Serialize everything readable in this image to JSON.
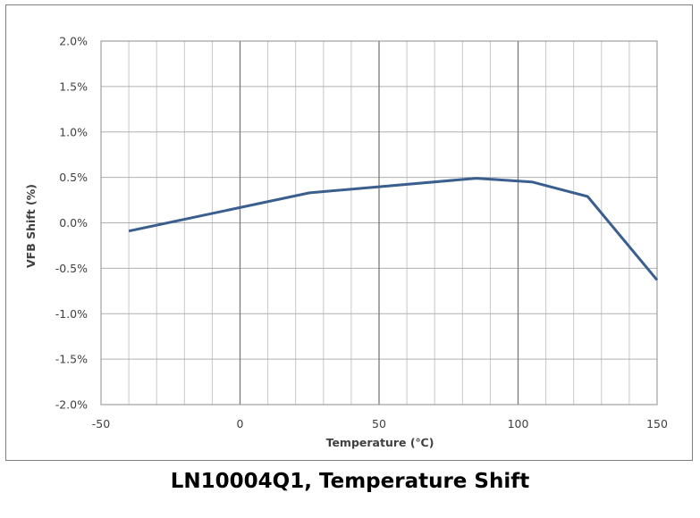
{
  "caption": "LN10004Q1, Temperature Shift",
  "chart_data": {
    "type": "line",
    "title": "",
    "xlabel": "Temperature (℃)",
    "ylabel": "VFB Shift (%)",
    "xlim": [
      -50,
      150
    ],
    "ylim": [
      -2.0,
      2.0
    ],
    "x_ticks": [
      -50,
      0,
      50,
      100,
      150
    ],
    "x_tick_labels": [
      "-50",
      "0",
      "50",
      "100",
      "150"
    ],
    "x_minor_step": 10,
    "y_ticks": [
      2.0,
      1.5,
      1.0,
      0.5,
      0.0,
      -0.5,
      -1.0,
      -1.5,
      -2.0
    ],
    "y_tick_labels": [
      "2.0%",
      "1.5%",
      "1.0%",
      "0.5%",
      "0.0%",
      "-0.5%",
      "-1.0%",
      "-1.5%",
      "-2.0%"
    ],
    "grid": true,
    "series": [
      {
        "color": "#3a5f8f",
        "x": [
          -40,
          25,
          85,
          105,
          125,
          150
        ],
        "y": [
          -0.09,
          0.33,
          0.49,
          0.45,
          0.29,
          -0.63
        ]
      }
    ]
  }
}
